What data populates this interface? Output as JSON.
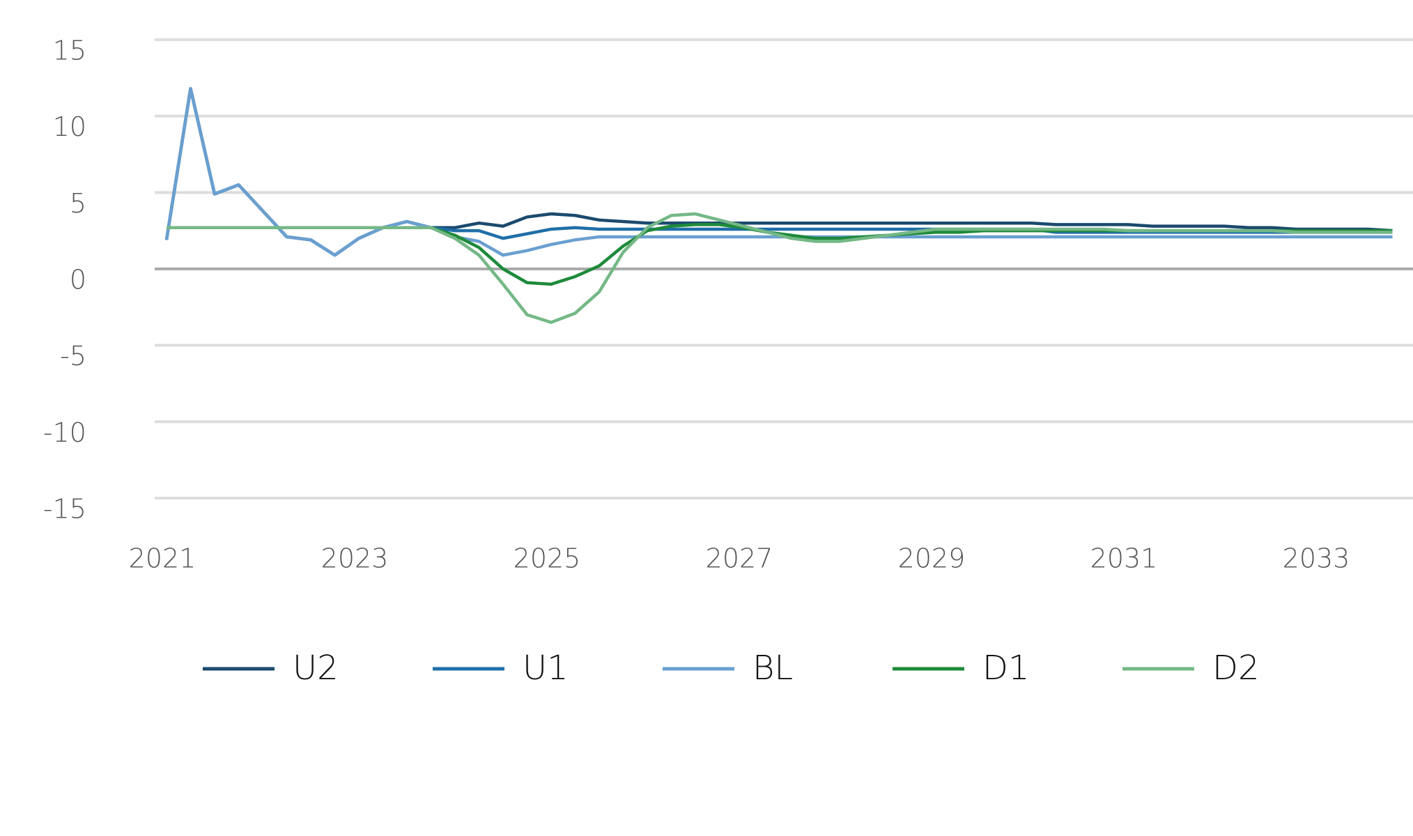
{
  "chart_data": {
    "type": "line",
    "categories": [
      "2021",
      null,
      null,
      null,
      null,
      null,
      null,
      null,
      "2023",
      null,
      null,
      null,
      null,
      null,
      null,
      null,
      "2025",
      null,
      null,
      null,
      null,
      null,
      null,
      null,
      "2027",
      null,
      null,
      null,
      null,
      null,
      null,
      null,
      "2029",
      null,
      null,
      null,
      null,
      null,
      null,
      null,
      "2031",
      null,
      null,
      null,
      null,
      null,
      null,
      null,
      "2033",
      null,
      null,
      null
    ],
    "ylim": [
      -15,
      15
    ],
    "yticks": [
      -15,
      -10,
      -5,
      0,
      5,
      10,
      15
    ],
    "grid": true,
    "legend": "bottom",
    "series": [
      {
        "name": "U2",
        "color": "#1b4a6e",
        "values": [
          1.9,
          11.8,
          4.9,
          5.5,
          3.8,
          2.1,
          1.9,
          0.9,
          2.0,
          2.7,
          3.1,
          2.7,
          2.7,
          3.0,
          2.8,
          3.4,
          3.6,
          3.5,
          3.2,
          3.1,
          3.0,
          3.0,
          3.0,
          3.0,
          3.0,
          3.0,
          3.0,
          3.0,
          3.0,
          3.0,
          3.0,
          3.0,
          3.0,
          3.0,
          3.0,
          3.0,
          3.0,
          2.9,
          2.9,
          2.9,
          2.9,
          2.8,
          2.8,
          2.8,
          2.8,
          2.7,
          2.7,
          2.6,
          2.6,
          2.6,
          2.6,
          2.5
        ]
      },
      {
        "name": "U1",
        "color": "#1f6fa8",
        "values": [
          1.9,
          11.8,
          4.9,
          5.5,
          3.8,
          2.1,
          1.9,
          0.9,
          2.0,
          2.7,
          3.1,
          2.7,
          2.5,
          2.5,
          2.0,
          2.3,
          2.6,
          2.7,
          2.6,
          2.6,
          2.6,
          2.6,
          2.6,
          2.6,
          2.6,
          2.6,
          2.6,
          2.6,
          2.6,
          2.6,
          2.6,
          2.6,
          2.6,
          2.6,
          2.6,
          2.6,
          2.6,
          2.4,
          2.4,
          2.4,
          2.4,
          2.4,
          2.4,
          2.4,
          2.4,
          2.4,
          2.4,
          2.4,
          2.4,
          2.4,
          2.4,
          2.4
        ]
      },
      {
        "name": "BL",
        "color": "#6a9fd0",
        "values": [
          1.9,
          11.8,
          4.9,
          5.5,
          3.8,
          2.1,
          1.9,
          0.9,
          2.0,
          2.7,
          3.1,
          2.7,
          2.1,
          1.8,
          0.9,
          1.2,
          1.6,
          1.9,
          2.1,
          2.1,
          2.1,
          2.1,
          2.1,
          2.1,
          2.1,
          2.1,
          2.1,
          2.1,
          2.1,
          2.1,
          2.1,
          2.1,
          2.1,
          2.1,
          2.1,
          2.1,
          2.1,
          2.1,
          2.1,
          2.1,
          2.1,
          2.1,
          2.1,
          2.1,
          2.1,
          2.1,
          2.1,
          2.1,
          2.1,
          2.1,
          2.1,
          2.1
        ]
      },
      {
        "name": "D1",
        "color": "#1e8a3a",
        "values": [
          2.7,
          2.7,
          2.7,
          2.7,
          2.7,
          2.7,
          2.7,
          2.7,
          2.7,
          2.7,
          2.7,
          2.7,
          2.2,
          1.4,
          0.0,
          -0.9,
          -1.0,
          -0.5,
          0.2,
          1.5,
          2.5,
          2.8,
          2.9,
          2.9,
          2.7,
          2.4,
          2.2,
          2.0,
          2.0,
          2.1,
          2.2,
          2.3,
          2.4,
          2.4,
          2.5,
          2.5,
          2.5,
          2.5,
          2.5,
          2.5,
          2.5,
          2.5,
          2.5,
          2.5,
          2.5,
          2.5,
          2.5,
          2.5,
          2.5,
          2.5,
          2.5,
          2.5
        ]
      },
      {
        "name": "D2",
        "color": "#74b886",
        "values": [
          2.7,
          2.7,
          2.7,
          2.7,
          2.7,
          2.7,
          2.7,
          2.7,
          2.7,
          2.7,
          2.7,
          2.7,
          2.0,
          0.9,
          -1.0,
          -3.0,
          -3.5,
          -2.9,
          -1.5,
          1.1,
          2.7,
          3.5,
          3.6,
          3.2,
          2.8,
          2.4,
          2.0,
          1.8,
          1.8,
          2.0,
          2.2,
          2.4,
          2.6,
          2.6,
          2.6,
          2.6,
          2.6,
          2.6,
          2.6,
          2.6,
          2.5,
          2.5,
          2.5,
          2.5,
          2.5,
          2.5,
          2.5,
          2.4,
          2.4,
          2.4,
          2.4,
          2.4
        ]
      }
    ]
  }
}
